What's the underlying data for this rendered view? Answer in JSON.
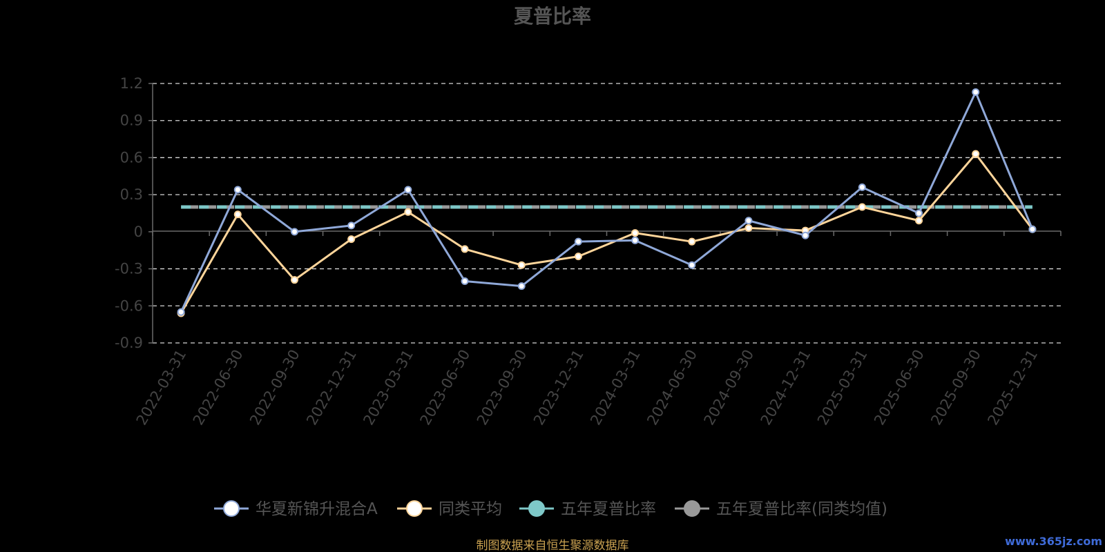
{
  "chart_data": {
    "type": "line",
    "title": "夏普比率",
    "categories": [
      "2022-03-31",
      "2022-06-30",
      "2022-09-30",
      "2022-12-31",
      "2023-03-31",
      "2023-06-30",
      "2023-09-30",
      "2023-12-31",
      "2024-03-31",
      "2024-06-30",
      "2024-09-30",
      "2024-12-31",
      "2025-03-31",
      "2025-06-30",
      "2025-09-30",
      "2025-12-31"
    ],
    "ylim": [
      -0.9,
      1.2
    ],
    "yticks": [
      "1.2",
      "0.9",
      "0.6",
      "0.3",
      "0",
      "-0.3",
      "-0.6",
      "-0.9"
    ],
    "grid": true,
    "legend_position": "bottom",
    "series": [
      {
        "name": "华夏新锦升混合A",
        "kind": "line",
        "color": "#8fa8d8",
        "values": [
          -0.65,
          0.34,
          0.0,
          0.05,
          0.34,
          -0.4,
          -0.44,
          -0.08,
          -0.07,
          -0.27,
          0.09,
          -0.03,
          0.36,
          0.15,
          1.13,
          0.02
        ]
      },
      {
        "name": "同类平均",
        "kind": "line",
        "color": "#ffd59a",
        "values": [
          -0.66,
          0.14,
          -0.39,
          -0.06,
          0.16,
          -0.14,
          -0.27,
          -0.2,
          -0.01,
          -0.08,
          0.03,
          0.01,
          0.2,
          0.09,
          0.63,
          0.02
        ]
      },
      {
        "name": "五年夏普比率",
        "kind": "dashed",
        "color": "#7ec8c8",
        "values": [
          0.2,
          0.2,
          0.2,
          0.2,
          0.2,
          0.2,
          0.2,
          0.2,
          0.2,
          0.2,
          0.2,
          0.2,
          0.2,
          0.2,
          0.2,
          0.2
        ]
      },
      {
        "name": "五年夏普比率(同类均值)",
        "kind": "dashed",
        "color": "#999999",
        "values": [
          0.2,
          0.2,
          0.2,
          0.2,
          0.2,
          0.2,
          0.2,
          0.2,
          0.2,
          0.2,
          0.2,
          0.2,
          0.2,
          0.2,
          0.2,
          0.2
        ]
      }
    ]
  },
  "footer": {
    "source": "制图数据来自恒生聚源数据库"
  },
  "watermark": {
    "text": "www.365jz.com"
  }
}
